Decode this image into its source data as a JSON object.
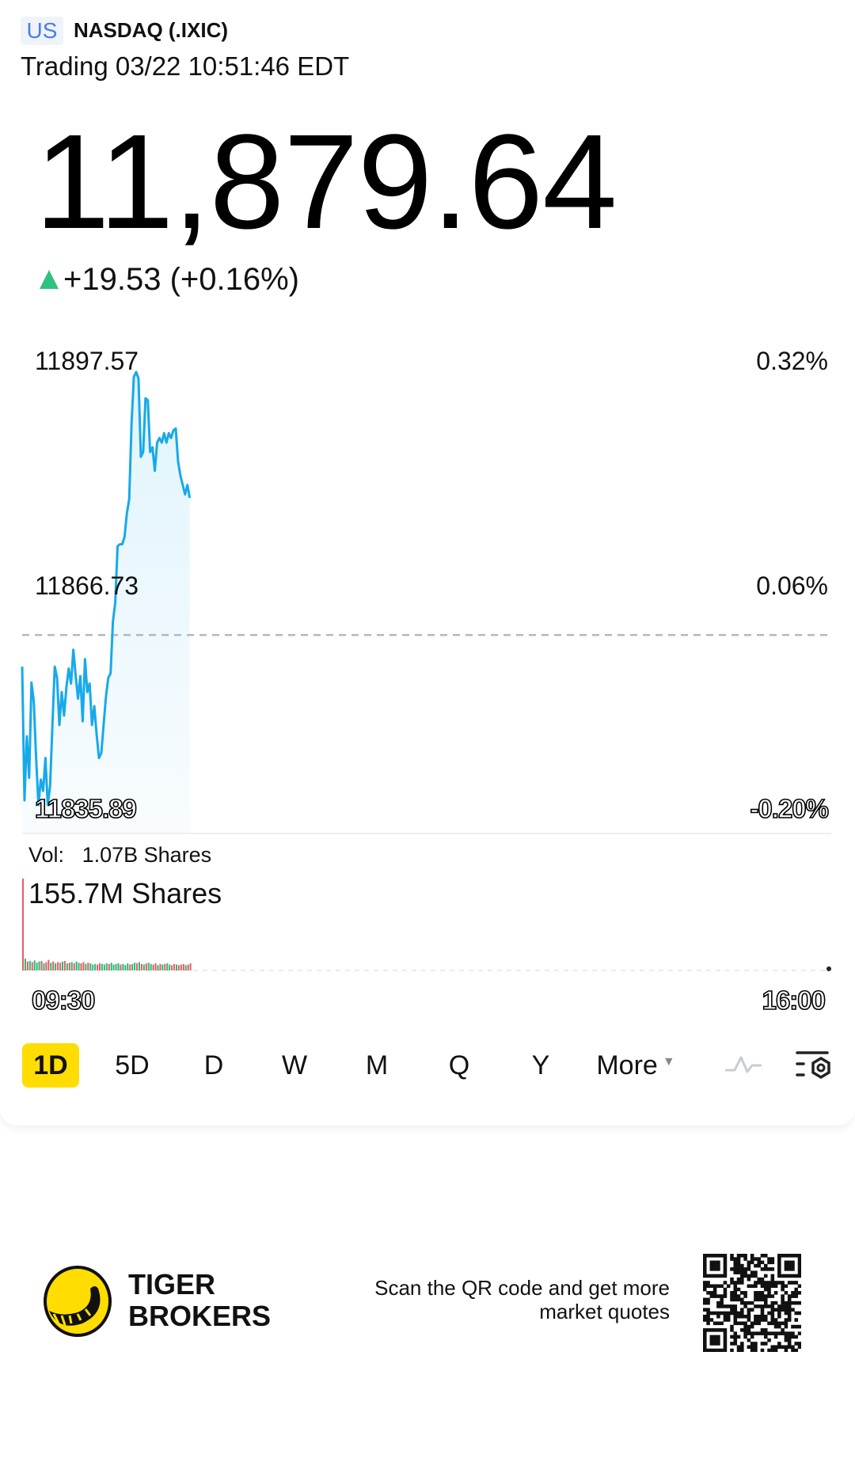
{
  "header": {
    "market_badge": "US",
    "symbol": "NASDAQ (.IXIC)",
    "status": "Trading 03/22 10:51:46 EDT"
  },
  "quote": {
    "price": "11,879.64",
    "change": "+19.53 (+0.16%)",
    "direction": "up",
    "up_color": "#2ec27e"
  },
  "chart_data": {
    "type": "line",
    "title": "NASDAQ (.IXIC) 1D",
    "line_color": "#17a9ea",
    "y_labels_left": [
      "11897.57",
      "11866.73",
      "11835.89"
    ],
    "y_labels_right": [
      "0.32%",
      "0.06%",
      "-0.20%"
    ],
    "ylim": [
      11835.89,
      11897.57
    ],
    "prev_close": 11860.11,
    "x_labels": [
      "09:30",
      "16:00"
    ],
    "session_minutes": 390,
    "last_minute": 81,
    "prices": [
      11855.6,
      11836.56,
      11845.68,
      11839.78,
      11853.32,
      11850.64,
      11842.59,
      11835.89,
      11839.51,
      11837.9,
      11842.59,
      11835.89,
      11838.57,
      11847.29,
      11855.6,
      11853.99,
      11847.29,
      11851.98,
      11848.63,
      11852.65,
      11855.33,
      11853.19,
      11858.01,
      11854.26,
      11851.04,
      11854.26,
      11847.82,
      11856.67,
      11851.98,
      11853.19,
      11847.29,
      11849.97,
      11845.95,
      11842.59,
      11843.26,
      11847.29,
      11851.31,
      11853.99,
      11854.66,
      11862.04,
      11864.72,
      11872.76,
      11873.03,
      11873.03,
      11874.1,
      11877.46,
      11879.47,
      11890.2,
      11896.9,
      11897.57,
      11896.63,
      11885.5,
      11886.17,
      11893.82,
      11893.55,
      11886.17,
      11886.84,
      11883.49,
      11887.51,
      11888.18,
      11887.51,
      11888.85,
      11887.51,
      11888.85,
      11888.18,
      11889.26,
      11889.52,
      11884.83,
      11882.82,
      11881.48,
      11880.14,
      11881.48,
      11879.64
    ],
    "volume": {
      "total_label": "Vol:",
      "total_value": "1.07B Shares",
      "max_label": "155.7M Shares",
      "max_value_m": 155.7,
      "bars_m": [
        155.7,
        20,
        15,
        16,
        14,
        17,
        13,
        15,
        16,
        12,
        14,
        18,
        13,
        15,
        12,
        14,
        13,
        15,
        16,
        12,
        13,
        14,
        12,
        15,
        13,
        12,
        14,
        11,
        13,
        12,
        10,
        11,
        10,
        12,
        11,
        10,
        12,
        11,
        13,
        10,
        11,
        12,
        10,
        11,
        9,
        12,
        10,
        11,
        13,
        12,
        14,
        11,
        10,
        12,
        13,
        11,
        10,
        12,
        9,
        11,
        10,
        11,
        12,
        10,
        9,
        11,
        10,
        9,
        10,
        11,
        9,
        10,
        12
      ],
      "bar_dirs": "rgrgrgggrgrrgrgrrgrgrgrggrrgrgggrrgggrggggrgggrggrgrgrggrrgrgrggrrgrrrg",
      "up_color": "#2fb57a",
      "down_color": "#e0605f"
    }
  },
  "periods": [
    "1D",
    "5D",
    "D",
    "W",
    "M",
    "Q",
    "Y",
    "More"
  ],
  "active_period": "1D",
  "footer": {
    "brand_line1": "TIGER",
    "brand_line2": "BROKERS",
    "cta_line1": "Scan the QR code and get more",
    "cta_line2": "market quotes"
  }
}
